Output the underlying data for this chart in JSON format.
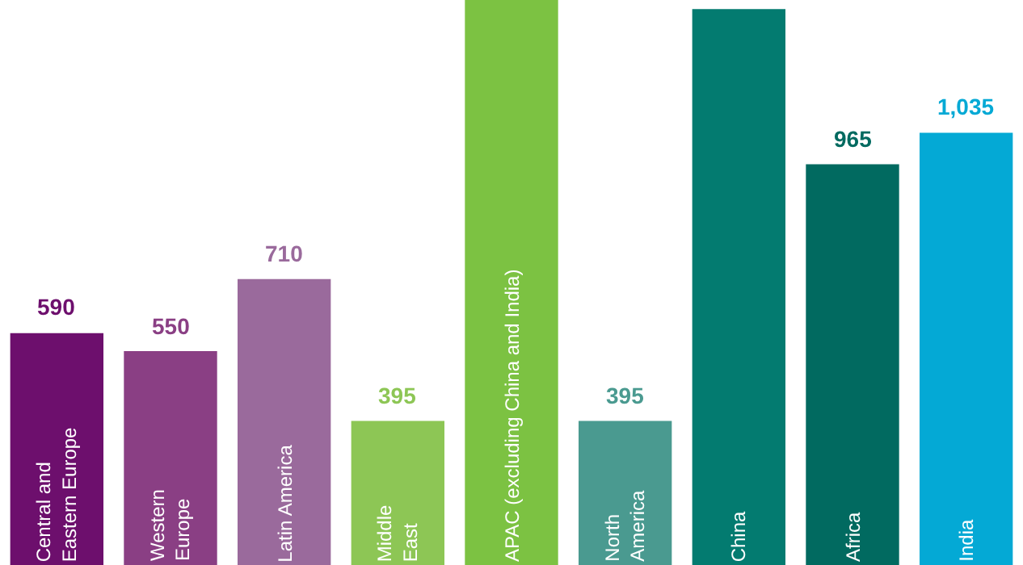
{
  "chart_data": {
    "type": "bar",
    "categories": [
      "Central and\nEastern Europe",
      "Western\nEurope",
      "Latin America",
      "Middle\nEast",
      "APAC (excluding China and India)",
      "North\nAmerica",
      "China",
      "Africa",
      "India"
    ],
    "values": [
      590,
      550,
      710,
      395,
      1330,
      395,
      1310,
      965,
      1035
    ],
    "colors": [
      "#6d0f6d",
      "#8a3f84",
      "#9a6a9c",
      "#8dc655",
      "#7cc242",
      "#4a9a90",
      "#037b70",
      "#016a60",
      "#04a9d5"
    ],
    "value_labels": [
      "590",
      "550",
      "710",
      "395",
      null,
      "395",
      null,
      "965",
      "1,035"
    ],
    "ylim": [
      75,
      1330
    ]
  }
}
